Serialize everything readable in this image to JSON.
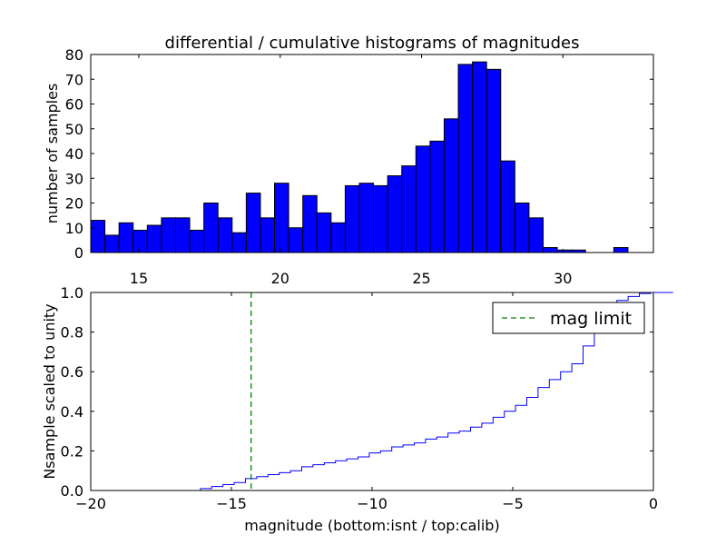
{
  "chart_data": [
    {
      "type": "bar",
      "title": "differential / cumulative histograms of magnitudes",
      "xlabel": "",
      "ylabel": "number of samples",
      "xlim": [
        13.3,
        33.2
      ],
      "ylim": [
        0,
        80
      ],
      "bar_color": "#0000ff",
      "bin_width": 0.5,
      "bin_starts": [
        13.3,
        13.8,
        14.3,
        14.8,
        15.3,
        15.8,
        16.3,
        16.8,
        17.3,
        17.8,
        18.3,
        18.8,
        19.3,
        19.8,
        20.3,
        20.8,
        21.3,
        21.8,
        22.3,
        22.8,
        23.3,
        23.8,
        24.3,
        24.8,
        25.3,
        25.8,
        26.3,
        26.8,
        27.3,
        27.8,
        28.3,
        28.8,
        29.3,
        29.8,
        30.3,
        30.8,
        31.3,
        31.8,
        32.3,
        32.8
      ],
      "values": [
        13,
        7,
        12,
        9,
        11,
        14,
        14,
        9,
        20,
        14,
        8,
        24,
        14,
        28,
        10,
        23,
        16,
        12,
        27,
        28,
        27,
        31,
        35,
        43,
        45,
        54,
        76,
        77,
        74,
        37,
        20,
        14,
        2,
        1,
        1,
        0,
        0,
        2,
        0,
        0
      ],
      "xticks": [
        15,
        20,
        25,
        30
      ],
      "xtick_labels": [
        "15",
        "20",
        "25",
        "30"
      ],
      "yticks": [
        0,
        10,
        20,
        30,
        40,
        50,
        60,
        70,
        80
      ],
      "ytick_labels": [
        "0",
        "10",
        "20",
        "30",
        "40",
        "50",
        "60",
        "70",
        "80"
      ]
    },
    {
      "type": "line",
      "step": true,
      "title": "",
      "xlabel": "magnitude (bottom:isnt / top:calib)",
      "ylabel": "Nsample scaled to unity",
      "xlim": [
        -20,
        0
      ],
      "ylim": [
        0,
        1.0
      ],
      "line_color": "#0000ff",
      "step_start": -16.1,
      "step_width": 0.4,
      "step_values": [
        0.01,
        0.02,
        0.03,
        0.04,
        0.06,
        0.07,
        0.08,
        0.09,
        0.1,
        0.12,
        0.13,
        0.14,
        0.15,
        0.16,
        0.17,
        0.19,
        0.2,
        0.22,
        0.23,
        0.24,
        0.26,
        0.27,
        0.29,
        0.3,
        0.32,
        0.34,
        0.37,
        0.4,
        0.43,
        0.47,
        0.52,
        0.56,
        0.6,
        0.64,
        0.73,
        0.82,
        0.91,
        0.96,
        0.98,
        0.995,
        1.0,
        1.0
      ],
      "vline_x": -14.3,
      "vline_label": "mag limit",
      "vline_color": "#008000",
      "legend_position": "top-right",
      "xticks": [
        -20,
        -15,
        -10,
        -5,
        0
      ],
      "xtick_labels": [
        "−20",
        "−15",
        "−10",
        "−5",
        "0"
      ],
      "yticks": [
        0,
        0.2,
        0.4,
        0.6,
        0.8,
        1.0
      ],
      "ytick_labels": [
        "0.0",
        "0.2",
        "0.4",
        "0.6",
        "0.8",
        "1.0"
      ]
    }
  ]
}
